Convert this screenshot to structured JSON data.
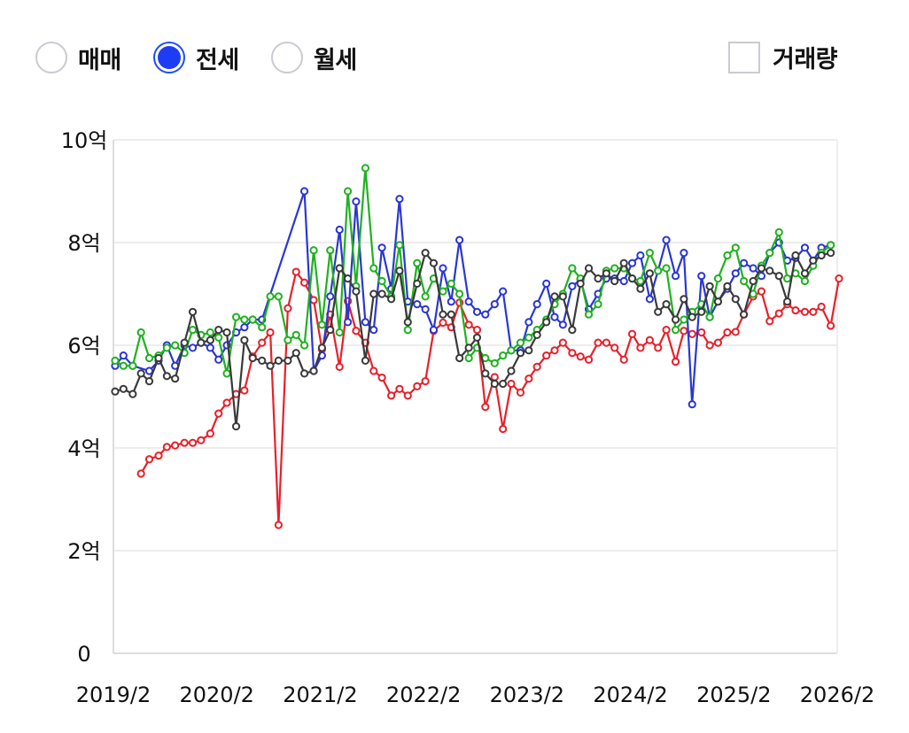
{
  "controls": {
    "radios": [
      {
        "label": "매매",
        "selected": false
      },
      {
        "label": "전세",
        "selected": true
      },
      {
        "label": "월세",
        "selected": false
      }
    ],
    "volume_checkbox": {
      "label": "거래량",
      "checked": false
    },
    "accent_color": "#1f3cf5"
  },
  "chart_data": {
    "type": "line",
    "title": "",
    "xlabel": "",
    "ylabel": "",
    "ylim": [
      0,
      10
    ],
    "y_ticks": [
      0,
      2,
      4,
      6,
      8,
      10
    ],
    "y_tick_labels": [
      "0",
      "2억",
      "4억",
      "6억",
      "8억",
      "10억"
    ],
    "x_range": [
      2019.083,
      2026.083
    ],
    "x_ticks": [
      2019.083,
      2020.083,
      2021.083,
      2022.083,
      2023.083,
      2024.083,
      2025.083,
      2026.083
    ],
    "x_tick_labels": [
      "2019/2",
      "2020/2",
      "2021/2",
      "2022/2",
      "2023/2",
      "2024/2",
      "2025/2",
      "2026/2"
    ],
    "grid": true,
    "legend": "none",
    "series": [
      {
        "color": "#e8202a",
        "x": [
          2019.35,
          2019.43,
          2019.52,
          2019.6,
          2019.68,
          2019.77,
          2019.85,
          2019.93,
          2020.02,
          2020.1,
          2020.18,
          2020.27,
          2020.35,
          2020.43,
          2020.52,
          2020.6,
          2020.68,
          2020.77,
          2020.85,
          2020.93,
          2021.02,
          2021.1,
          2021.18,
          2021.27,
          2021.35,
          2021.43,
          2021.52,
          2021.6,
          2021.68,
          2021.77,
          2021.85,
          2021.93,
          2022.02,
          2022.1,
          2022.18,
          2022.27,
          2022.35,
          2022.43,
          2022.52,
          2022.6,
          2022.68,
          2022.77,
          2022.85,
          2022.93,
          2023.02,
          2023.1,
          2023.18,
          2023.27,
          2023.35,
          2023.43,
          2023.52,
          2023.6,
          2023.68,
          2023.77,
          2023.85,
          2023.93,
          2024.02,
          2024.1,
          2024.18,
          2024.27,
          2024.35,
          2024.43,
          2024.52,
          2024.6,
          2024.68,
          2024.77,
          2024.85,
          2024.93,
          2025.02,
          2025.1,
          2025.18,
          2025.27,
          2025.35,
          2025.43,
          2025.52,
          2025.6,
          2025.68,
          2025.77,
          2025.85,
          2025.93,
          2026.02,
          2026.1
        ],
        "values": [
          3.5,
          3.78,
          3.85,
          4.02,
          4.05,
          4.1,
          4.1,
          4.15,
          4.28,
          4.67,
          4.88,
          5.05,
          5.12,
          5.78,
          6.05,
          6.25,
          2.5,
          6.72,
          7.43,
          7.22,
          6.88,
          5.92,
          6.6,
          5.58,
          6.86,
          6.28,
          6.05,
          5.5,
          5.37,
          5.02,
          5.15,
          5.02,
          5.2,
          5.3,
          6.28,
          6.44,
          6.35,
          6.83,
          6.4,
          6.3,
          4.8,
          5.38,
          4.37,
          5.25,
          5.08,
          5.35,
          5.58,
          5.8,
          5.9,
          6.05,
          5.85,
          5.78,
          5.72,
          6.05,
          6.05,
          5.95,
          5.72,
          6.22,
          5.95,
          6.1,
          5.95,
          6.3,
          5.68,
          6.28,
          6.22,
          6.25,
          6.0,
          6.05,
          6.25,
          6.26,
          6.6,
          6.95,
          7.05,
          6.47,
          6.62,
          6.8,
          6.68,
          6.65,
          6.65,
          6.75,
          6.38,
          7.3
        ]
      },
      {
        "color": "#2a36d6",
        "x": [
          2019.1,
          2019.18,
          2019.27,
          2019.43,
          2019.52,
          2019.6,
          2019.68,
          2019.77,
          2019.85,
          2019.93,
          2020.02,
          2020.1,
          2020.18,
          2020.27,
          2020.35,
          2020.43,
          2020.52,
          2020.93,
          2021.02,
          2021.1,
          2021.18,
          2021.27,
          2021.35,
          2021.43,
          2021.52,
          2021.6,
          2021.68,
          2021.77,
          2021.85,
          2021.93,
          2022.02,
          2022.1,
          2022.18,
          2022.27,
          2022.35,
          2022.43,
          2022.52,
          2022.6,
          2022.68,
          2022.77,
          2022.85,
          2022.93,
          2023.02,
          2023.1,
          2023.18,
          2023.27,
          2023.35,
          2023.43,
          2023.52,
          2023.6,
          2023.68,
          2023.77,
          2023.85,
          2023.93,
          2024.02,
          2024.1,
          2024.18,
          2024.27,
          2024.35,
          2024.43,
          2024.52,
          2024.6,
          2024.68,
          2024.77,
          2024.85,
          2024.93,
          2025.02,
          2025.1,
          2025.18,
          2025.27,
          2025.35,
          2025.43,
          2025.52,
          2025.6,
          2025.68,
          2025.77,
          2025.85,
          2025.93,
          2026.02
        ],
        "values": [
          5.6,
          5.8,
          5.6,
          5.5,
          5.7,
          6.0,
          5.6,
          6.0,
          5.95,
          6.05,
          5.95,
          5.72,
          6.0,
          6.25,
          6.35,
          6.5,
          6.5,
          9.0,
          5.5,
          5.8,
          6.95,
          8.25,
          6.45,
          8.8,
          6.45,
          6.3,
          7.9,
          7.1,
          8.85,
          6.85,
          6.8,
          6.7,
          6.3,
          7.5,
          6.85,
          8.05,
          6.85,
          6.65,
          6.6,
          6.8,
          7.05,
          5.9,
          5.9,
          6.45,
          6.8,
          7.2,
          6.55,
          6.4,
          7.15,
          7.28,
          6.7,
          7.0,
          7.3,
          7.3,
          7.25,
          7.6,
          7.75,
          6.9,
          7.45,
          8.05,
          7.35,
          7.8,
          4.85,
          7.35,
          6.55,
          6.85,
          7.1,
          7.4,
          7.6,
          7.5,
          7.35,
          7.8,
          8.0,
          7.65,
          7.7,
          7.9,
          7.65,
          7.9,
          7.95
        ]
      },
      {
        "color": "#1fb21f",
        "x": [
          2019.1,
          2019.18,
          2019.27,
          2019.35,
          2019.43,
          2019.52,
          2019.6,
          2019.68,
          2019.77,
          2019.85,
          2019.93,
          2020.02,
          2020.1,
          2020.18,
          2020.27,
          2020.35,
          2020.43,
          2020.52,
          2020.6,
          2020.68,
          2020.77,
          2020.85,
          2020.93,
          2021.02,
          2021.1,
          2021.18,
          2021.27,
          2021.35,
          2021.43,
          2021.52,
          2021.6,
          2021.68,
          2021.77,
          2021.85,
          2021.93,
          2022.02,
          2022.1,
          2022.18,
          2022.27,
          2022.35,
          2022.43,
          2022.52,
          2022.6,
          2022.68,
          2022.77,
          2022.85,
          2022.93,
          2023.02,
          2023.1,
          2023.18,
          2023.27,
          2023.35,
          2023.43,
          2023.52,
          2023.6,
          2023.68,
          2023.77,
          2023.85,
          2023.93,
          2024.02,
          2024.1,
          2024.18,
          2024.27,
          2024.35,
          2024.43,
          2024.52,
          2024.6,
          2024.68,
          2024.77,
          2024.85,
          2024.93,
          2025.02,
          2025.1,
          2025.18,
          2025.27,
          2025.35,
          2025.43,
          2025.52,
          2025.6,
          2025.68,
          2025.77,
          2025.85,
          2025.93,
          2026.02
        ],
        "values": [
          5.7,
          5.6,
          5.6,
          6.25,
          5.75,
          5.8,
          5.95,
          6.0,
          5.85,
          6.3,
          6.2,
          6.25,
          6.15,
          5.45,
          6.55,
          6.5,
          6.5,
          6.35,
          6.95,
          6.95,
          6.1,
          6.2,
          6.0,
          7.85,
          6.4,
          7.85,
          6.25,
          9.0,
          7.15,
          9.45,
          7.5,
          7.25,
          6.95,
          7.95,
          6.3,
          7.6,
          6.95,
          7.3,
          7.05,
          7.2,
          7.0,
          5.75,
          5.95,
          5.75,
          5.65,
          5.8,
          5.9,
          6.05,
          6.15,
          6.3,
          6.5,
          6.8,
          7.0,
          7.5,
          7.3,
          6.6,
          6.8,
          7.45,
          7.5,
          7.5,
          7.3,
          7.25,
          7.8,
          7.45,
          7.5,
          6.3,
          6.5,
          6.65,
          6.8,
          6.55,
          7.3,
          7.75,
          7.9,
          7.25,
          7.0,
          7.55,
          7.8,
          8.2,
          7.3,
          7.4,
          7.25,
          7.55,
          7.8,
          7.95
        ]
      },
      {
        "color": "#3a3a3a",
        "x": [
          2019.1,
          2019.18,
          2019.27,
          2019.35,
          2019.43,
          2019.52,
          2019.6,
          2019.68,
          2019.77,
          2019.85,
          2019.93,
          2020.02,
          2020.1,
          2020.18,
          2020.27,
          2020.35,
          2020.43,
          2020.52,
          2020.6,
          2020.68,
          2020.77,
          2020.85,
          2020.93,
          2021.02,
          2021.1,
          2021.18,
          2021.27,
          2021.35,
          2021.43,
          2021.52,
          2021.6,
          2021.68,
          2021.77,
          2021.85,
          2021.93,
          2022.02,
          2022.1,
          2022.18,
          2022.27,
          2022.35,
          2022.43,
          2022.52,
          2022.6,
          2022.68,
          2022.77,
          2022.85,
          2022.93,
          2023.02,
          2023.1,
          2023.18,
          2023.27,
          2023.35,
          2023.43,
          2023.52,
          2023.6,
          2023.68,
          2023.77,
          2023.85,
          2023.93,
          2024.02,
          2024.1,
          2024.18,
          2024.27,
          2024.35,
          2024.43,
          2024.52,
          2024.6,
          2024.68,
          2024.77,
          2024.85,
          2024.93,
          2025.02,
          2025.1,
          2025.18,
          2025.27,
          2025.35,
          2025.43,
          2025.52,
          2025.6,
          2025.68,
          2025.77,
          2025.85,
          2025.93,
          2026.02
        ],
        "values": [
          5.1,
          5.15,
          5.05,
          5.45,
          5.3,
          5.75,
          5.4,
          5.35,
          6.05,
          6.65,
          6.05,
          6.1,
          6.3,
          6.25,
          4.42,
          6.1,
          5.75,
          5.7,
          5.6,
          5.7,
          5.7,
          5.85,
          5.45,
          5.5,
          5.95,
          6.3,
          7.5,
          7.3,
          7.05,
          5.7,
          7.0,
          7.0,
          6.9,
          7.45,
          6.45,
          7.2,
          7.8,
          7.6,
          6.6,
          6.6,
          5.75,
          5.95,
          6.15,
          5.45,
          5.25,
          5.25,
          5.5,
          5.85,
          5.9,
          6.2,
          6.45,
          6.95,
          6.95,
          6.3,
          7.2,
          7.5,
          7.3,
          7.4,
          7.25,
          7.6,
          7.3,
          7.1,
          7.4,
          6.65,
          6.8,
          6.5,
          6.9,
          6.55,
          6.65,
          7.15,
          6.85,
          7.15,
          6.9,
          6.6,
          7.25,
          7.5,
          7.45,
          7.35,
          6.85,
          7.75,
          7.4,
          7.65,
          7.75,
          7.8
        ]
      }
    ]
  }
}
